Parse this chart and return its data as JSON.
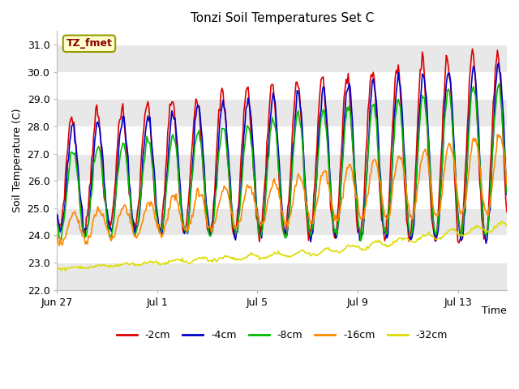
{
  "title": "Tonzi Soil Temperatures Set C",
  "ylabel": "Soil Temperature (C)",
  "xlabel": "Time",
  "ylim": [
    22.0,
    31.5
  ],
  "yticks": [
    22.0,
    23.0,
    24.0,
    25.0,
    26.0,
    27.0,
    28.0,
    29.0,
    30.0,
    31.0
  ],
  "xtick_labels": [
    "Jun 27",
    "Jul 1",
    "Jul 5",
    "Jul 9",
    "Jul 13"
  ],
  "xtick_positions": [
    0,
    96,
    192,
    288,
    384
  ],
  "annotation_text": "TZ_fmet",
  "line_colors": [
    "#dd0000",
    "#0000cc",
    "#00bb00",
    "#ff8800",
    "#dddd00"
  ],
  "line_labels": [
    "-2cm",
    "-4cm",
    "-8cm",
    "-16cm",
    "-32cm"
  ],
  "line_width": 1.2,
  "bg_band_color": "#e8e8e8",
  "total_hours": 432,
  "figsize": [
    6.4,
    4.8
  ],
  "dpi": 100
}
